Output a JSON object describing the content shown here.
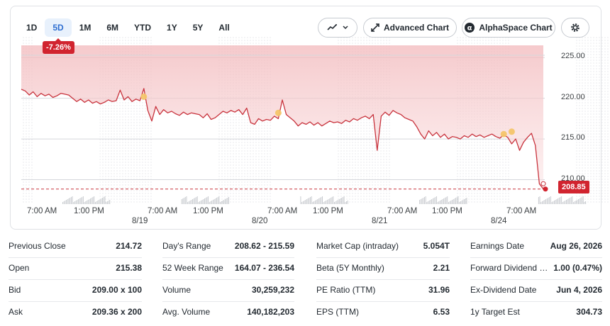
{
  "ranges": [
    "1D",
    "5D",
    "1M",
    "6M",
    "YTD",
    "1Y",
    "5Y",
    "All"
  ],
  "active_range": "5D",
  "toolbar": {
    "chart_type_icon": "line-chart-icon",
    "advanced_chart_label": "Advanced Chart",
    "alphaspace_chart_label": "AlphaSpace Chart",
    "settings_icon": "gear-icon"
  },
  "change_badge": "-7.26%",
  "current_price_tag": "208.85",
  "colors": {
    "down": "#d1242f",
    "active_tab": "#2f6fd1"
  },
  "chart_data": {
    "type": "line",
    "y_ticks": [
      "225.00",
      "220.00",
      "215.00",
      "210.00"
    ],
    "ylim": [
      207,
      226.5
    ],
    "x_tick_labels": [
      {
        "label": "7:00 AM"
      },
      {
        "label": "1:00 PM"
      },
      {
        "label": "8/19"
      },
      {
        "label": "7:00 AM"
      },
      {
        "label": "1:00 PM"
      },
      {
        "label": "8/20"
      },
      {
        "label": "7:00 AM"
      },
      {
        "label": "1:00 PM"
      },
      {
        "label": "8/21"
      },
      {
        "label": "7:00 AM"
      },
      {
        "label": "1:00 PM"
      },
      {
        "label": "8/24"
      },
      {
        "label": "7:00 AM"
      }
    ],
    "previous_close": 214.72,
    "last_price": 208.85,
    "series": [
      {
        "values": [
          221.1,
          220.9,
          220.4,
          220.8,
          220.2,
          220.6,
          220.3,
          220.5,
          220.1,
          220.3,
          220.6,
          220.5,
          220.4,
          220.0,
          219.6,
          219.9,
          219.5,
          219.8,
          219.4,
          219.6,
          219.3,
          219.5,
          219.8,
          219.6,
          219.7,
          221.0,
          219.8,
          220.2,
          219.6,
          219.9,
          219.7,
          221.2,
          218.5,
          217.2,
          219.0,
          218.0,
          218.6,
          218.2,
          218.4,
          218.1,
          217.9,
          218.3,
          218.0,
          218.2,
          218.1,
          218.0,
          217.6,
          218.1,
          217.4,
          217.6,
          218.0,
          218.4,
          218.2,
          218.5,
          218.3,
          218.6,
          218.0,
          218.8,
          217.0,
          216.8,
          217.5,
          217.2,
          217.4,
          217.3,
          217.8,
          217.5,
          219.8,
          218.0,
          217.6,
          217.2,
          216.6,
          217.0,
          216.8,
          217.1,
          216.7,
          217.0,
          216.6,
          216.9,
          217.2,
          217.0,
          217.1,
          216.9,
          217.3,
          217.1,
          217.5,
          217.3,
          217.6,
          217.8,
          217.5,
          218.0,
          213.6,
          217.8,
          218.3,
          217.9,
          218.5,
          218.2,
          218.0,
          217.6,
          217.4,
          217.2,
          216.5,
          215.6,
          215.0,
          216.0,
          215.4,
          215.8,
          215.2,
          215.6,
          215.0,
          215.3,
          215.2,
          215.0,
          215.4,
          215.2,
          215.6,
          215.3,
          215.5,
          215.2,
          215.4,
          215.6,
          215.3,
          215.1,
          215.5,
          215.2,
          214.4,
          215.0,
          213.6,
          214.6,
          215.2,
          215.7,
          214.2,
          209.5,
          208.85
        ]
      }
    ],
    "events": [
      {
        "type": "dividend",
        "value": 220.2
      },
      {
        "type": "dividend",
        "value": 218.2
      },
      {
        "type": "dividend",
        "value": 215.6
      },
      {
        "type": "dividend",
        "value": 215.9
      }
    ]
  },
  "stats": [
    [
      {
        "label": "Previous Close",
        "value": "214.72"
      },
      {
        "label": "Open",
        "value": "215.38"
      },
      {
        "label": "Bid",
        "value": "209.00 x 100"
      },
      {
        "label": "Ask",
        "value": "209.36 x 200"
      }
    ],
    [
      {
        "label": "Day's Range",
        "value": "208.62 - 215.59"
      },
      {
        "label": "52 Week Range",
        "value": "164.07 - 236.54"
      },
      {
        "label": "Volume",
        "value": "30,259,232"
      },
      {
        "label": "Avg. Volume",
        "value": "140,182,203"
      }
    ],
    [
      {
        "label": "Market Cap (intraday)",
        "value": "5.054T"
      },
      {
        "label": "Beta (5Y Monthly)",
        "value": "2.21"
      },
      {
        "label": "PE Ratio (TTM)",
        "value": "31.96"
      },
      {
        "label": "EPS (TTM)",
        "value": "6.53"
      }
    ],
    [
      {
        "label": "Earnings Date",
        "value": "Aug 26, 2026"
      },
      {
        "label": "Forward Dividend & Yield",
        "value": "1.00 (0.47%)"
      },
      {
        "label": "Ex-Dividend Date",
        "value": "Jun 4, 2026"
      },
      {
        "label": "1y Target Est",
        "value": "304.73"
      }
    ]
  ]
}
